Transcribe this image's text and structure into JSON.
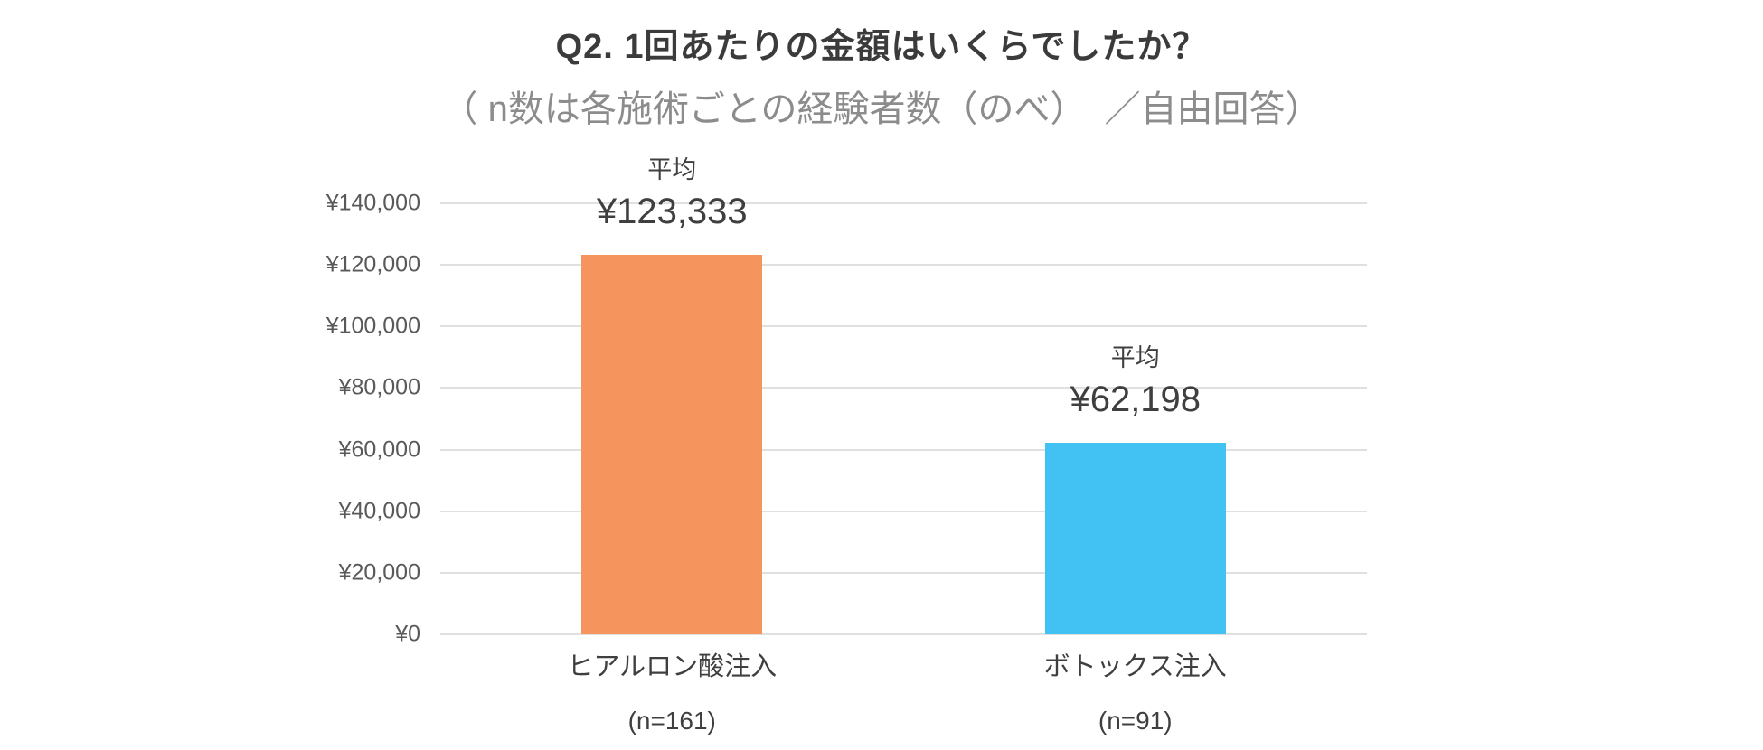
{
  "chart_data": {
    "type": "bar",
    "title": "Q2. 1回あたりの金額はいくらでしたか？",
    "subtitle": "（ n数は各施術ごとの経験者数（のべ）　／自由回答）",
    "categories": [
      "ヒアルロン酸注入",
      "ボトックス注入"
    ],
    "category_counts": [
      "(n=161)",
      "(n=91)"
    ],
    "values": [
      123333,
      62198
    ],
    "value_label_prefix": "平均",
    "value_labels": [
      "¥123,333",
      "¥62,198"
    ],
    "bar_colors": [
      "#F5945C",
      "#41C2F2"
    ],
    "ylim": [
      0,
      140000
    ],
    "yticks": [
      {
        "value": 0,
        "label": "¥0"
      },
      {
        "value": 20000,
        "label": "¥20,000"
      },
      {
        "value": 40000,
        "label": "¥40,000"
      },
      {
        "value": 60000,
        "label": "¥60,000"
      },
      {
        "value": 80000,
        "label": "¥80,000"
      },
      {
        "value": 100000,
        "label": "¥100,000"
      },
      {
        "value": 120000,
        "label": "¥120,000"
      },
      {
        "value": 140000,
        "label": "¥140,000"
      }
    ],
    "grid": true,
    "legend": "none",
    "colors": {
      "title": "#3b3b3b",
      "subtitle": "#8c8c8c",
      "axis_text": "#595959",
      "gridline": "#e0e0e0",
      "background": "#ffffff"
    }
  }
}
